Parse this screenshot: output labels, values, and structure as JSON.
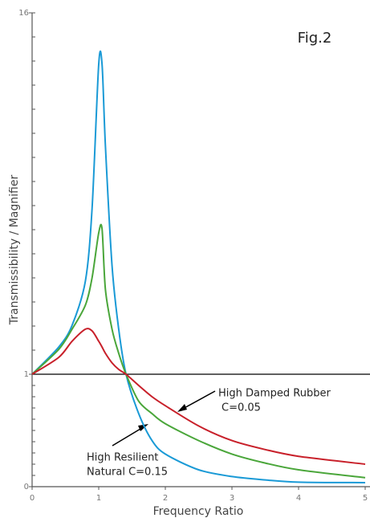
{
  "chart_data": {
    "type": "line",
    "title": "Fig.2",
    "x_label": "Frequency Ratio",
    "y_label": "Transmissibility / Magnifier",
    "x": [
      0,
      0.4,
      0.6,
      0.8,
      0.9,
      1.0,
      1.05,
      1.1,
      1.2,
      1.3,
      1.41,
      1.6,
      1.8,
      2,
      2.5,
      3,
      3.5,
      4,
      5
    ],
    "series": [
      {
        "color": "#1a9ad6",
        "values": [
          1,
          2.13,
          3.03,
          4.87,
          7.87,
          13.87,
          13.87,
          10.5,
          5.5,
          2.87,
          1,
          0.65,
          0.41,
          0.29,
          0.15,
          0.09,
          0.06,
          0.04,
          0.036
        ]
      },
      {
        "color": "#4aa63a",
        "values": [
          1,
          2.03,
          2.87,
          3.87,
          5.0,
          6.87,
          7.03,
          4.53,
          2.87,
          1.87,
          1,
          0.76,
          0.65,
          0.56,
          0.41,
          0.29,
          0.21,
          0.15,
          0.08
        ]
      },
      {
        "color": "#c8202a",
        "values": [
          1,
          1.7,
          2.37,
          2.87,
          2.8,
          2.37,
          2.13,
          1.87,
          1.47,
          1.2,
          1,
          0.9,
          0.8,
          0.72,
          0.54,
          0.41,
          0.33,
          0.27,
          0.2
        ]
      }
    ],
    "xlim": [
      0,
      5
    ],
    "xticks": [
      0,
      1,
      2,
      3,
      4,
      5
    ],
    "ylim": [
      0,
      16
    ],
    "yticks": [
      0,
      1,
      16
    ],
    "reference_y": 1,
    "annotations": [
      {
        "lines": [
          "High Damped Rubber",
          "C=0.05"
        ]
      },
      {
        "lines": [
          "High Resilient",
          "Natural C=0.15"
        ]
      }
    ]
  }
}
